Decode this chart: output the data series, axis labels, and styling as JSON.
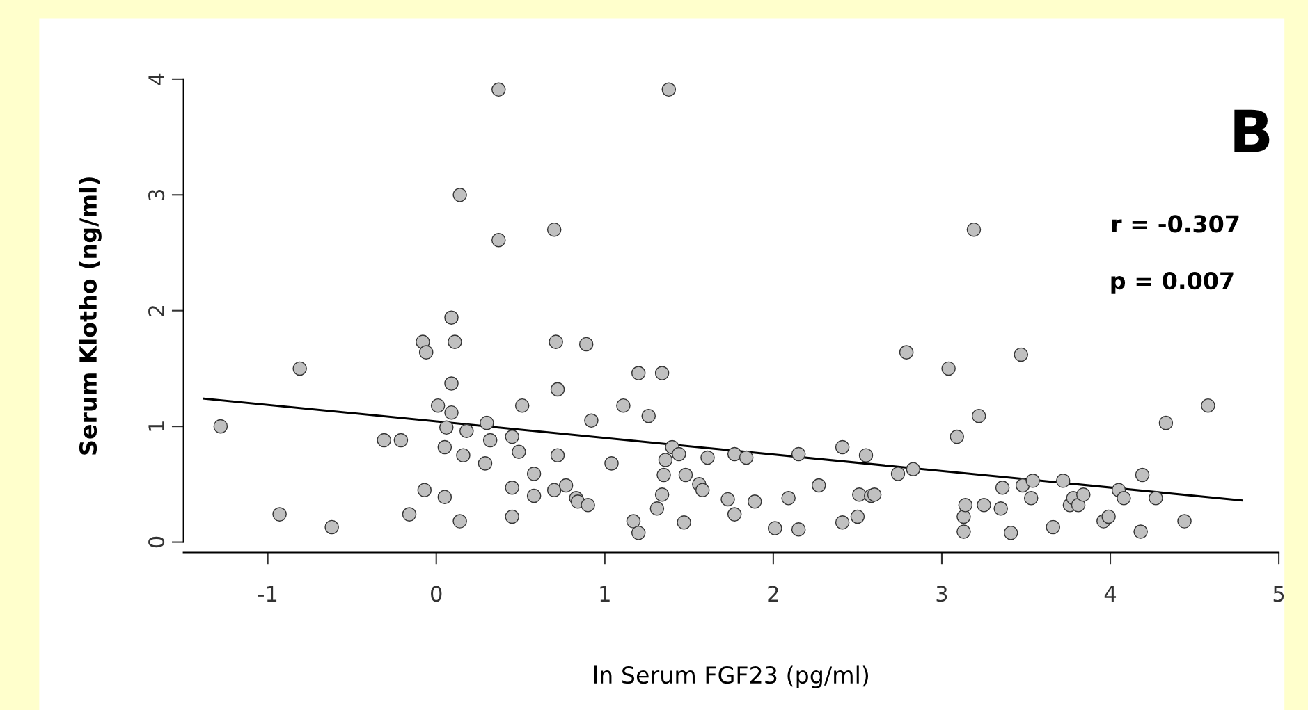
{
  "chart_data": {
    "type": "scatter",
    "xlabel": "ln Serum FGF23 (pg/ml)",
    "ylabel": "Serum Klotho (ng/ml)",
    "annotations": [
      "B",
      "r = -0.307",
      "p = 0.007"
    ],
    "xlim": [
      -1.5,
      5.0
    ],
    "ylim": [
      -0.09,
      4.0
    ],
    "xticks": [
      -1,
      0,
      1,
      2,
      3,
      4,
      5
    ],
    "yticks": [
      0,
      1,
      2,
      3,
      4
    ],
    "grid": false,
    "legend": false,
    "series": [
      {
        "color": "#c0c0c0",
        "marker": "circle",
        "x": [
          -1.28,
          -0.93,
          -0.81,
          -0.62,
          -0.31,
          -0.21,
          -0.16,
          -0.08,
          -0.06,
          -0.07,
          0.01,
          0.05,
          0.05,
          0.06,
          0.09,
          0.09,
          0.09,
          0.11,
          0.14,
          0.14,
          0.16,
          0.18,
          0.29,
          0.3,
          0.32,
          0.37,
          0.37,
          0.45,
          0.45,
          0.45,
          0.49,
          0.51,
          0.58,
          0.58,
          0.7,
          0.71,
          0.7,
          0.72,
          0.72,
          0.77,
          0.83,
          0.84,
          0.89,
          0.9,
          0.92,
          1.04,
          1.11,
          1.17,
          1.2,
          1.2,
          1.26,
          1.31,
          1.34,
          1.34,
          1.35,
          1.36,
          1.38,
          1.4,
          1.44,
          1.47,
          1.48,
          1.56,
          1.58,
          1.61,
          1.73,
          1.77,
          1.77,
          1.84,
          1.89,
          2.01,
          2.09,
          2.15,
          2.15,
          2.27,
          2.41,
          2.41,
          2.5,
          2.51,
          2.55,
          2.58,
          2.6,
          2.74,
          2.79,
          2.83,
          3.04,
          3.09,
          3.13,
          3.13,
          3.14,
          3.19,
          3.22,
          3.25,
          3.35,
          3.36,
          3.41,
          3.47,
          3.48,
          3.53,
          3.54,
          3.66,
          3.72,
          3.76,
          3.78,
          3.81,
          3.84,
          3.96,
          3.99,
          4.05,
          4.08,
          4.18,
          4.19,
          4.27,
          4.33,
          4.44,
          4.58
        ],
        "values": [
          1.0,
          0.24,
          1.5,
          0.13,
          0.88,
          0.88,
          0.24,
          1.73,
          1.64,
          0.45,
          1.18,
          0.39,
          0.82,
          0.99,
          1.37,
          1.94,
          1.12,
          1.73,
          3.0,
          0.18,
          0.75,
          0.96,
          0.68,
          1.03,
          0.88,
          3.91,
          2.61,
          0.91,
          0.47,
          0.22,
          0.78,
          1.18,
          0.59,
          0.4,
          2.7,
          1.73,
          0.45,
          1.32,
          0.75,
          0.49,
          0.38,
          0.35,
          1.71,
          0.32,
          1.05,
          0.68,
          1.18,
          0.18,
          0.08,
          1.46,
          1.09,
          0.29,
          1.46,
          0.41,
          0.58,
          0.71,
          3.91,
          0.82,
          0.76,
          0.17,
          0.58,
          0.5,
          0.45,
          0.73,
          0.37,
          0.24,
          0.76,
          0.73,
          0.35,
          0.12,
          0.38,
          0.76,
          0.11,
          0.49,
          0.82,
          0.17,
          0.22,
          0.41,
          0.75,
          0.4,
          0.41,
          0.59,
          1.64,
          0.63,
          1.5,
          0.91,
          0.09,
          0.22,
          0.32,
          2.7,
          1.09,
          0.32,
          0.29,
          0.47,
          0.08,
          1.62,
          0.49,
          0.38,
          0.53,
          0.13,
          0.53,
          0.32,
          0.38,
          0.32,
          0.41,
          0.18,
          0.22,
          0.45,
          0.38,
          0.09,
          0.58,
          0.38,
          1.03,
          0.18,
          1.18
        ]
      },
      {
        "type": "line",
        "color": "#000000",
        "x": [
          -1.38,
          4.78
        ],
        "values": [
          1.24,
          0.36
        ]
      }
    ]
  }
}
